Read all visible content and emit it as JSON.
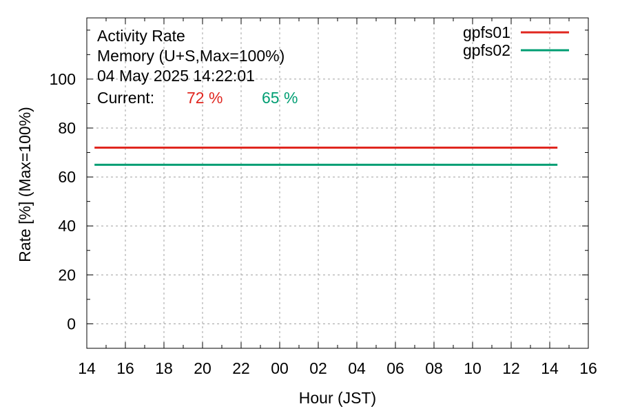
{
  "chart_data": {
    "type": "line",
    "title_lines": [
      "Activity Rate",
      "Memory (U+S,Max=100%)",
      "04 May 2025 14:22:01"
    ],
    "current_label": "Current:",
    "current_values": [
      {
        "text": "72 %",
        "color": "#e0261f"
      },
      {
        "text": "65 %",
        "color": "#009e73"
      }
    ],
    "xlabel": "Hour (JST)",
    "ylabel": "Rate [%]  (Max=100%)",
    "x_tick_labels": [
      "14",
      "16",
      "18",
      "20",
      "22",
      "00",
      "02",
      "04",
      "06",
      "08",
      "10",
      "12",
      "14",
      "16"
    ],
    "xlim": [
      0,
      26
    ],
    "x_unit": "hours from 14:00 JST on 03 May 2025",
    "ylim": [
      -10,
      125
    ],
    "y_ticks": [
      0,
      20,
      40,
      60,
      80,
      100
    ],
    "grid": true,
    "legend_position": "top-right",
    "series": [
      {
        "name": "gpfs01",
        "color": "#e0261f",
        "x": [
          0.4,
          24.4
        ],
        "values": [
          72,
          72
        ]
      },
      {
        "name": "gpfs02",
        "color": "#009e73",
        "x": [
          0.4,
          24.4
        ],
        "values": [
          65,
          65
        ]
      }
    ]
  }
}
